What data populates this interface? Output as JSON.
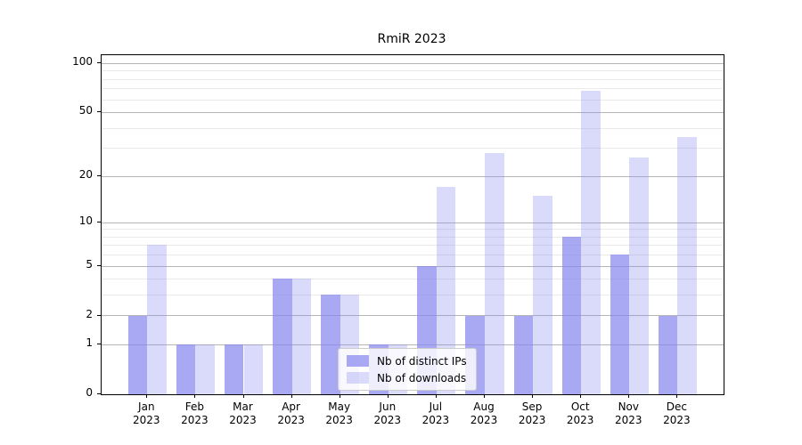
{
  "title": "RmiR 2023",
  "chart_data": {
    "type": "bar",
    "title": "RmiR 2023",
    "categories": [
      "Jan 2023",
      "Feb 2023",
      "Mar 2023",
      "Apr 2023",
      "May 2023",
      "Jun 2023",
      "Jul 2023",
      "Aug 2023",
      "Sep 2023",
      "Oct 2023",
      "Nov 2023",
      "Dec 2023"
    ],
    "series": [
      {
        "name": "Nb of distinct IPs",
        "base_color": "#8888ee",
        "opacity": 0.72,
        "rendered_hex": "#a9a9f8",
        "values": [
          2,
          1,
          1,
          4,
          3,
          1,
          5,
          2,
          2,
          8,
          6,
          2
        ]
      },
      {
        "name": "Nb of downloads",
        "base_color": "#8888ee",
        "opacity": 0.31,
        "rendered_hex": "#dadaf8",
        "values": [
          7,
          1,
          1,
          4,
          3,
          1,
          17,
          28,
          15,
          68,
          26,
          35
        ]
      }
    ],
    "xlabel": "",
    "ylabel": "",
    "yscale": "log1p",
    "yticks": [
      0,
      1,
      2,
      5,
      10,
      20,
      50,
      100
    ],
    "ylim": [
      0,
      112
    ],
    "grid": true,
    "legend_position": "lower center"
  }
}
